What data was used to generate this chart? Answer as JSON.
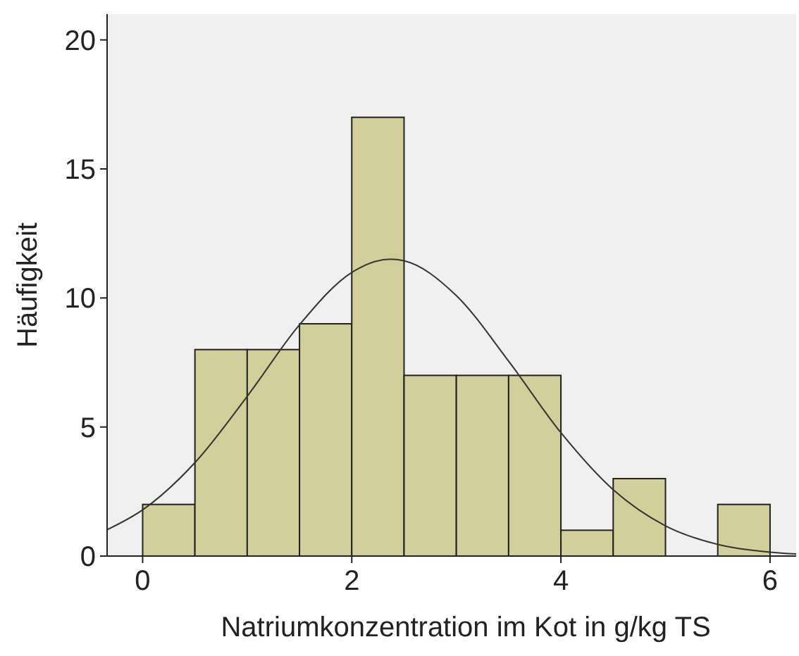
{
  "chart_data": {
    "type": "histogram",
    "xlabel": "Natriumkonzentration im Kot in g/kg TS",
    "ylabel": "Häufigkeit",
    "bins": [
      0,
      0.5,
      1,
      1.5,
      2,
      2.5,
      3,
      3.5,
      4,
      4.5,
      5,
      5.5,
      6
    ],
    "series": [
      {
        "color": "#d3cf9b",
        "values": [
          2,
          8,
          8,
          9,
          17,
          7,
          7,
          7,
          1,
          3,
          0,
          2
        ]
      },
      {
        "type": "line",
        "color": "#333333",
        "x": [
          -0.34,
          0,
          0.5,
          1,
          1.5,
          2,
          2.37,
          2.5,
          3,
          3.5,
          4,
          4.5,
          5,
          5.5,
          6,
          6.25
        ],
        "values": [
          1.02,
          1.79,
          3.62,
          6.19,
          8.96,
          10.99,
          11.5,
          11.44,
          10.09,
          7.55,
          4.78,
          2.57,
          1.17,
          0.45,
          0.15,
          0.08
        ]
      }
    ],
    "xlim": [
      -0.34,
      6.25
    ],
    "ylim": [
      0,
      21
    ],
    "xticks": [
      0,
      2,
      4,
      6
    ],
    "yticks": [
      0,
      5,
      10,
      15,
      20
    ],
    "grid": false
  }
}
